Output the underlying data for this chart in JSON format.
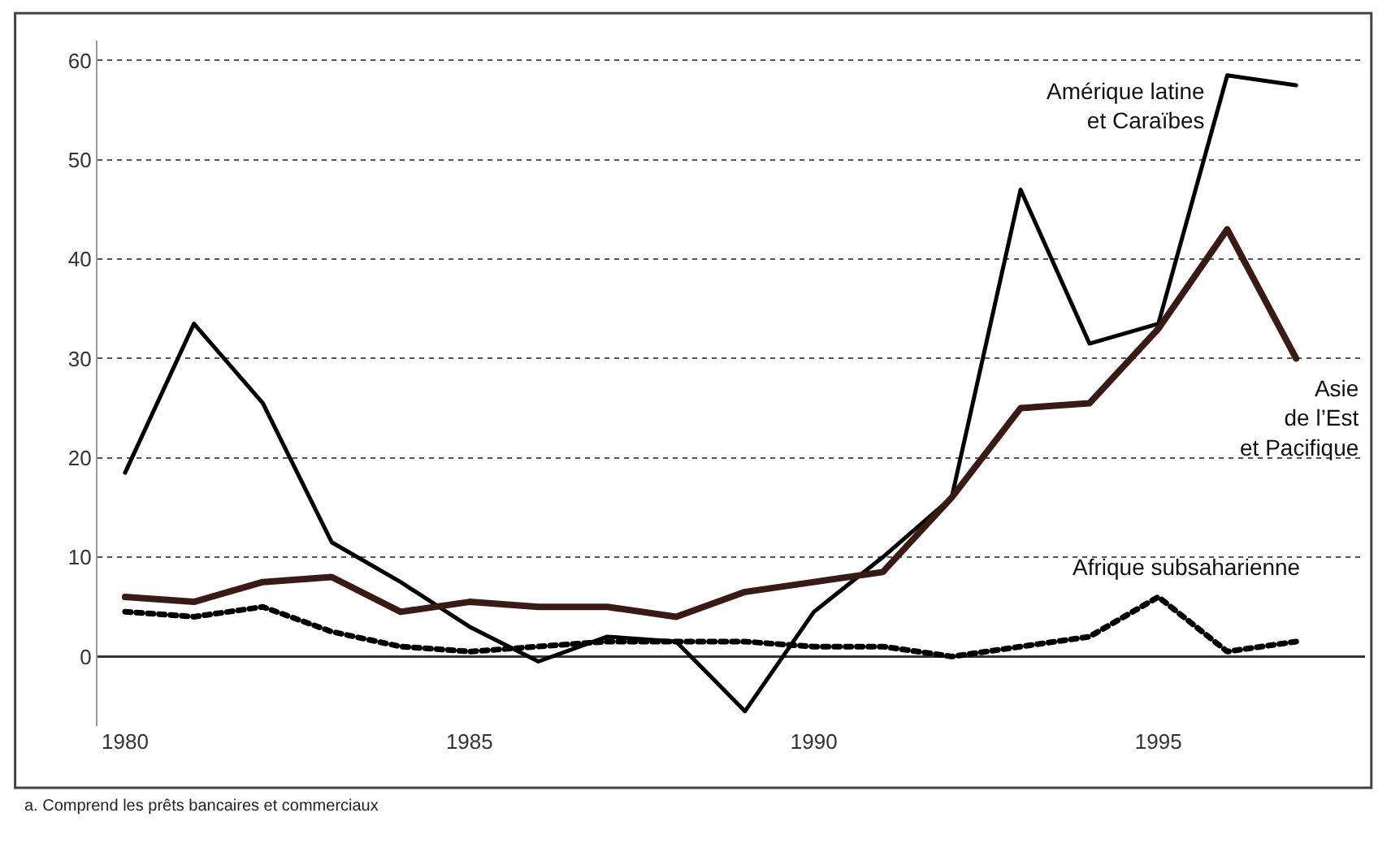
{
  "chart_data": {
    "type": "line",
    "x": [
      1980,
      1981,
      1982,
      1983,
      1984,
      1985,
      1986,
      1987,
      1988,
      1989,
      1990,
      1991,
      1992,
      1993,
      1994,
      1995,
      1996,
      1997
    ],
    "series": [
      {
        "name": "Amérique latine\net Caraïbes",
        "color": "#000000",
        "line_style": "solid",
        "values": [
          18.5,
          33.5,
          25.5,
          11.5,
          7.5,
          3,
          -0.5,
          2,
          1.5,
          -5.5,
          4.5,
          10,
          16,
          47,
          31.5,
          33.5,
          58.5,
          57.5
        ]
      },
      {
        "name": "Asie\nde l’Est\net Pacifique",
        "color": "#3a1a14",
        "line_style": "solid",
        "values": [
          6,
          5.5,
          7.5,
          8,
          4.5,
          5.5,
          5,
          5,
          4,
          6.5,
          7.5,
          8.5,
          16,
          25,
          25.5,
          33,
          43,
          30
        ]
      },
      {
        "name": "Afrique subsaharienne",
        "color": "#000000",
        "line_style": "dotted",
        "values": [
          4.5,
          4,
          5,
          2.5,
          1,
          0.5,
          1,
          1.5,
          1.5,
          1.5,
          1,
          1,
          0,
          1,
          2,
          6,
          0.5,
          1.5
        ]
      }
    ],
    "xlim": [
      1979.6,
      1998
    ],
    "xticks": [
      1980,
      1985,
      1990,
      1995
    ],
    "ylim": [
      -7,
      62
    ],
    "yticks": [
      0,
      10,
      20,
      30,
      40,
      50,
      60
    ],
    "grid": "y",
    "legend": false,
    "marker": "none",
    "annotations": [
      "a. Comprend les prêts bancaires et commerciaux"
    ]
  }
}
